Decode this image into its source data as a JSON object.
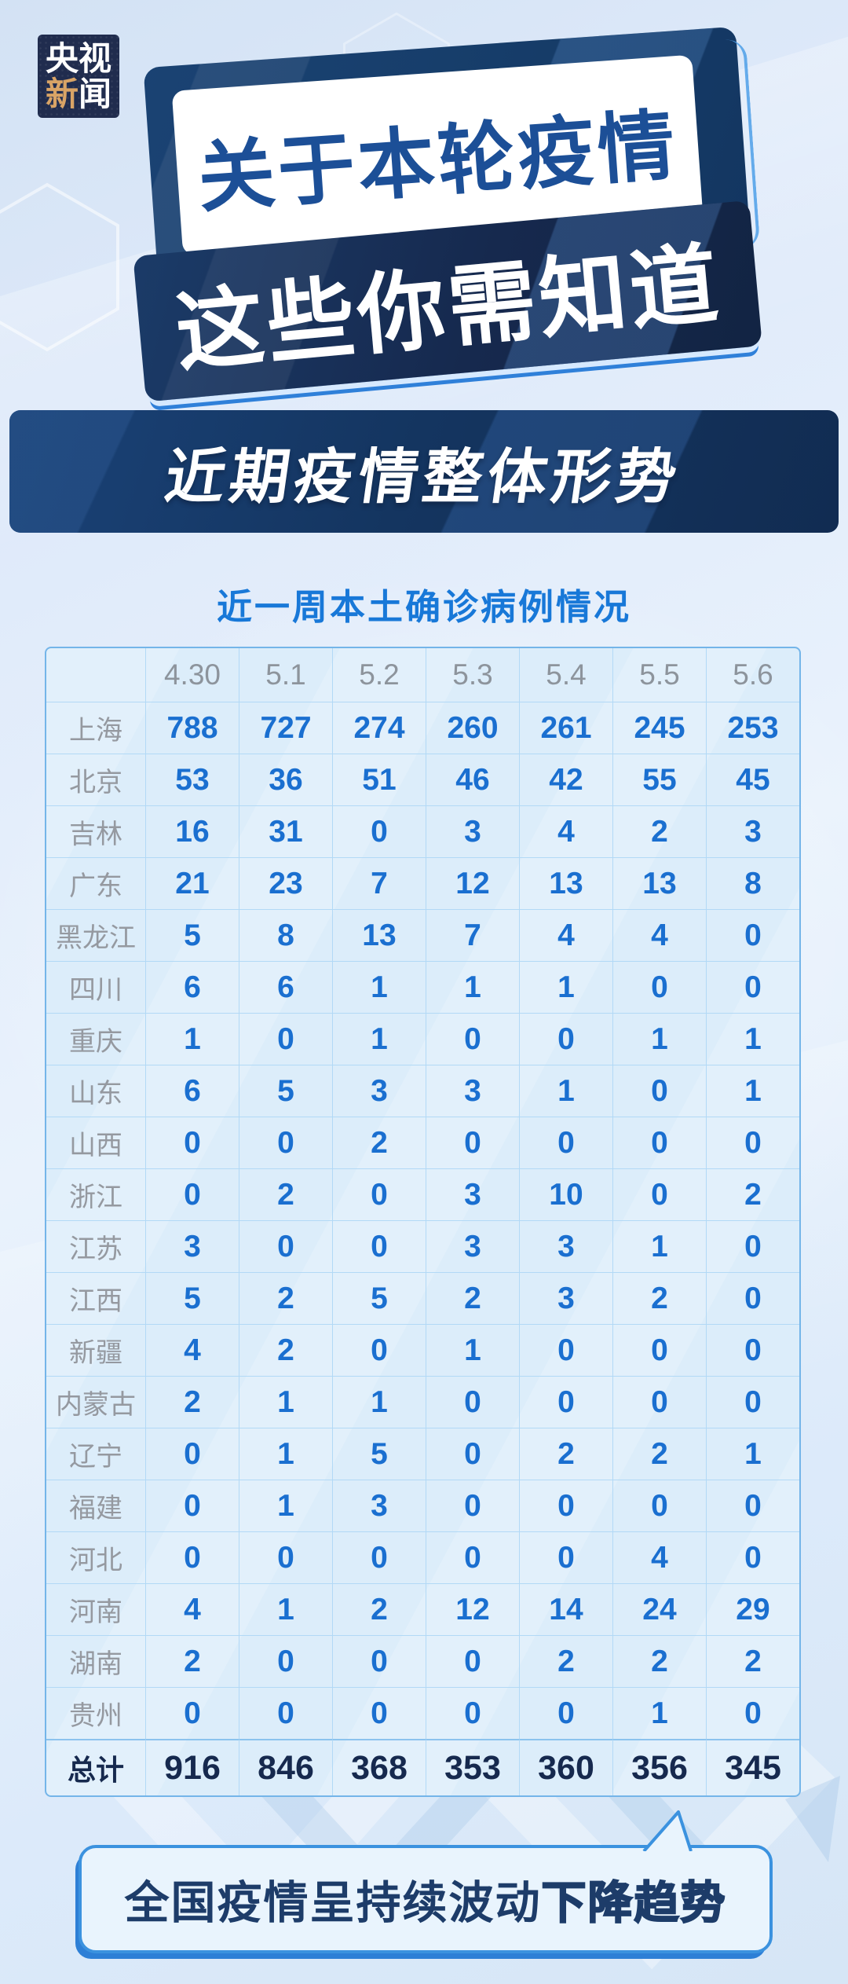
{
  "brand": {
    "char1": "央",
    "char2": "视",
    "char3": "新",
    "char4": "闻"
  },
  "hero": {
    "line1": "关于本轮疫情",
    "line2": "这些你需知道"
  },
  "section": {
    "title": "近期疫情整体形势"
  },
  "footer": {
    "callout_regular": "全国疫情呈持续波动",
    "callout_bold": "下降趋势"
  },
  "colors": {
    "navy_panel": "#173e6b",
    "navy_box": "#16294e",
    "hero_text_blue": "#1c4f97",
    "section_navy": "#143560",
    "table_title_blue": "#1878d8",
    "number_blue": "#1a6fd0",
    "label_gray": "#9599a0",
    "date_gray": "#8d949c",
    "total_navy": "#16294e",
    "table_border_outer": "#74b5e9",
    "table_border_inner": "#b2d9f6",
    "bubble_border": "#3b92df",
    "bubble_fill": "#e9f4fd",
    "bubble_text": "#1d3c69",
    "logo_bg": "#202c4e",
    "logo_gold": "#d9a466"
  },
  "chart_data": {
    "type": "table",
    "title": "近一周本土确诊病例情况",
    "corner_label": "",
    "columns": [
      "4.30",
      "5.1",
      "5.2",
      "5.3",
      "5.4",
      "5.5",
      "5.6"
    ],
    "rows": [
      {
        "name": "上海",
        "values": [
          788,
          727,
          274,
          260,
          261,
          245,
          253
        ]
      },
      {
        "name": "北京",
        "values": [
          53,
          36,
          51,
          46,
          42,
          55,
          45
        ]
      },
      {
        "name": "吉林",
        "values": [
          16,
          31,
          0,
          3,
          4,
          2,
          3
        ]
      },
      {
        "name": "广东",
        "values": [
          21,
          23,
          7,
          12,
          13,
          13,
          8
        ]
      },
      {
        "name": "黑龙江",
        "values": [
          5,
          8,
          13,
          7,
          4,
          4,
          0
        ]
      },
      {
        "name": "四川",
        "values": [
          6,
          6,
          1,
          1,
          1,
          0,
          0
        ]
      },
      {
        "name": "重庆",
        "values": [
          1,
          0,
          1,
          0,
          0,
          1,
          1
        ]
      },
      {
        "name": "山东",
        "values": [
          6,
          5,
          3,
          3,
          1,
          0,
          1
        ]
      },
      {
        "name": "山西",
        "values": [
          0,
          0,
          2,
          0,
          0,
          0,
          0
        ]
      },
      {
        "name": "浙江",
        "values": [
          0,
          2,
          0,
          3,
          10,
          0,
          2
        ]
      },
      {
        "name": "江苏",
        "values": [
          3,
          0,
          0,
          3,
          3,
          1,
          0
        ]
      },
      {
        "name": "江西",
        "values": [
          5,
          2,
          5,
          2,
          3,
          2,
          0
        ]
      },
      {
        "name": "新疆",
        "values": [
          4,
          2,
          0,
          1,
          0,
          0,
          0
        ]
      },
      {
        "name": "内蒙古",
        "values": [
          2,
          1,
          1,
          0,
          0,
          0,
          0
        ]
      },
      {
        "name": "辽宁",
        "values": [
          0,
          1,
          5,
          0,
          2,
          2,
          1
        ]
      },
      {
        "name": "福建",
        "values": [
          0,
          1,
          3,
          0,
          0,
          0,
          0
        ]
      },
      {
        "name": "河北",
        "values": [
          0,
          0,
          0,
          0,
          0,
          4,
          0
        ]
      },
      {
        "name": "河南",
        "values": [
          4,
          1,
          2,
          12,
          14,
          24,
          29
        ]
      },
      {
        "name": "湖南",
        "values": [
          2,
          0,
          0,
          0,
          2,
          2,
          2
        ]
      },
      {
        "name": "贵州",
        "values": [
          0,
          0,
          0,
          0,
          0,
          1,
          0
        ]
      }
    ],
    "total": {
      "label": "总计",
      "values": [
        916,
        846,
        368,
        353,
        360,
        356,
        345
      ]
    }
  }
}
